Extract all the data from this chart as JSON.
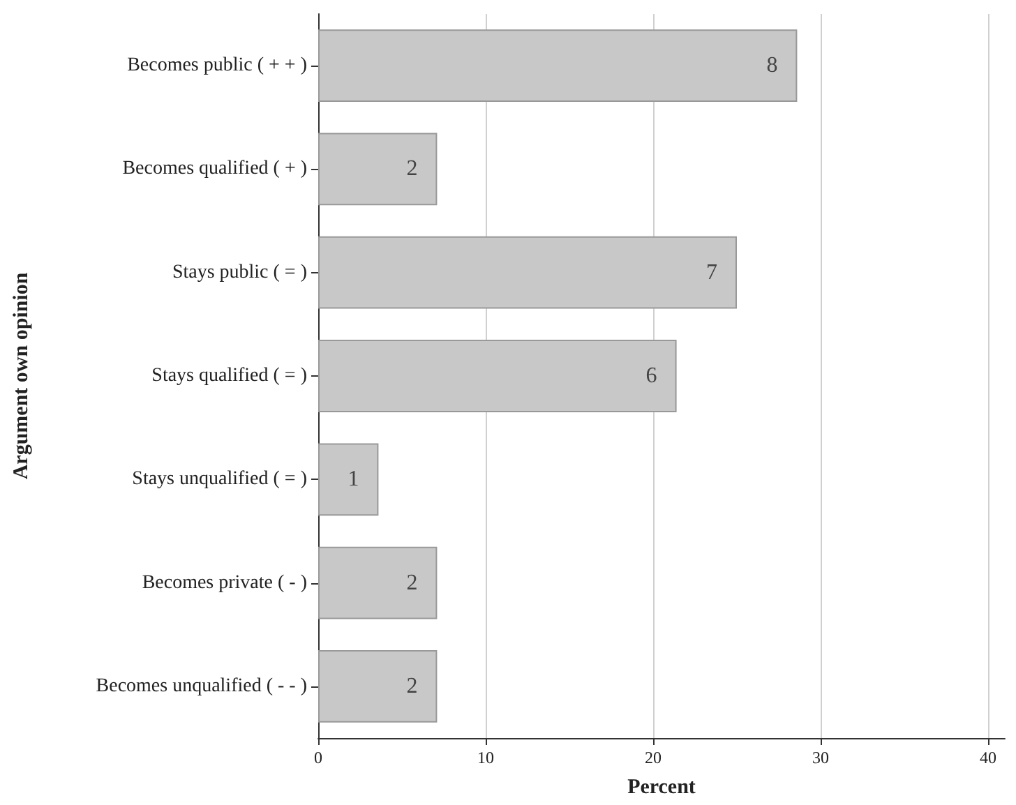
{
  "chart_data": {
    "type": "bar",
    "orientation": "horizontal",
    "xlabel": "Percent",
    "ylabel": "Argument own opinion",
    "categories": [
      "Becomes public ( + + )",
      "Becomes qualified ( + )",
      "Stays public ( = )",
      "Stays qualified ( = )",
      "Stays unqualified ( = )",
      "Becomes private ( - )",
      "Becomes unqualified ( - - )"
    ],
    "values": [
      28.6,
      7.1,
      25,
      21.4,
      3.6,
      7.1,
      7.1
    ],
    "annotations": [
      {
        "text": "8",
        "x": 28.6,
        "y": "Becomes public ( + + )"
      },
      {
        "text": "2",
        "x": 7.1,
        "y": "Becomes qualified ( + )"
      },
      {
        "text": "7",
        "x": 25,
        "y": "Stays public ( = )"
      },
      {
        "text": "6",
        "x": 21.4,
        "y": "Stays qualified ( = )"
      },
      {
        "text": "1",
        "x": 3.6,
        "y": "Stays unqualified ( = )"
      },
      {
        "text": "2",
        "x": 7.1,
        "y": "Becomes private ( - )"
      },
      {
        "text": "2",
        "x": 7.1,
        "y": "Becomes unqualified ( - - )"
      }
    ],
    "color": "#c8c8c8",
    "xlim": [
      0,
      41
    ],
    "xticks": [
      0,
      10,
      20,
      30,
      40
    ],
    "grid": "x"
  }
}
